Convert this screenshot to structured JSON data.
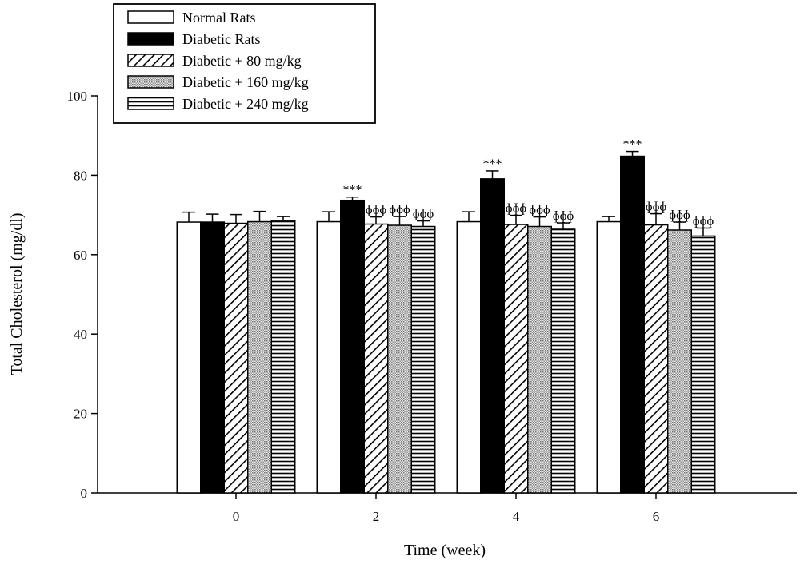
{
  "chart_data": {
    "type": "bar",
    "xlabel": "Time (week)",
    "ylabel": "Total Cholesterol (mg/dl)",
    "ylim": [
      0,
      100
    ],
    "yticks": [
      0,
      20,
      40,
      60,
      80,
      100
    ],
    "categories": [
      "0",
      "2",
      "4",
      "6"
    ],
    "series": [
      {
        "name": "Normal Rats",
        "pattern": "white",
        "values": [
          68.2,
          68.3,
          68.3,
          68.3
        ],
        "errors": [
          2.5,
          2.5,
          2.5,
          1.3
        ],
        "annotations": [
          "",
          "",
          "",
          ""
        ]
      },
      {
        "name": "Diabetic Rats",
        "pattern": "black",
        "values": [
          68.2,
          73.7,
          79.1,
          84.8
        ],
        "errors": [
          2.0,
          0.8,
          2.0,
          1.2
        ],
        "annotations": [
          "",
          "***",
          "***",
          "***"
        ]
      },
      {
        "name": "Diabetic + 80 mg/kg",
        "pattern": "diagonal",
        "values": [
          67.9,
          67.7,
          67.6,
          67.5
        ],
        "errors": [
          2.2,
          1.8,
          2.3,
          2.8
        ],
        "annotations": [
          "",
          "ɸɸɸ",
          "ɸɸɸ",
          "ɸɸɸ"
        ]
      },
      {
        "name": "Diabetic + 160 mg/kg",
        "pattern": "dotted",
        "values": [
          68.3,
          67.4,
          67.1,
          66.2
        ],
        "errors": [
          2.6,
          2.2,
          2.4,
          2.0
        ],
        "annotations": [
          "",
          "ɸɸɸ",
          "ɸɸɸ",
          "ɸɸɸ"
        ]
      },
      {
        "name": "Diabetic + 240 mg/kg",
        "pattern": "horizontal",
        "values": [
          68.6,
          67.1,
          66.4,
          64.7
        ],
        "errors": [
          1.0,
          1.4,
          1.6,
          2.0
        ],
        "annotations": [
          "",
          "ɸɸɸ",
          "ɸɸɸ",
          "ɸɸɸ"
        ]
      }
    ],
    "legend": {
      "position": "top-left"
    },
    "grid": false
  }
}
